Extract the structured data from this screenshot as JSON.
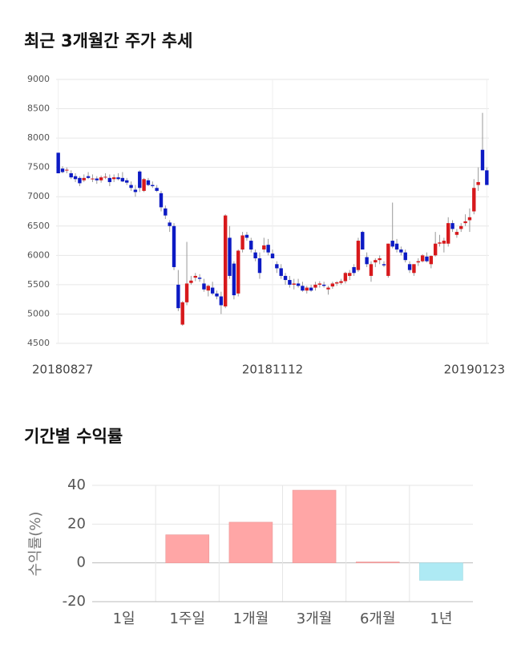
{
  "chart_data": [
    {
      "type": "candlestick",
      "title": "최근 3개월간 주가 추세",
      "categories": [
        "20180827",
        null,
        null,
        null,
        null,
        null,
        null,
        null,
        null,
        null,
        null,
        null,
        null,
        null,
        null,
        null,
        null,
        null,
        null,
        null,
        null,
        null,
        null,
        null,
        null,
        null,
        null,
        null,
        null,
        null,
        null,
        null,
        null,
        null,
        null,
        null,
        null,
        null,
        null,
        null,
        null,
        null,
        null,
        null,
        null,
        null,
        null,
        null,
        null,
        null,
        "20181112",
        null,
        null,
        null,
        null,
        null,
        null,
        null,
        null,
        null,
        null,
        null,
        null,
        null,
        null,
        null,
        null,
        null,
        null,
        null,
        null,
        null,
        null,
        null,
        null,
        null,
        null,
        null,
        null,
        null,
        null,
        null,
        null,
        null,
        null,
        null,
        null,
        null,
        null,
        null,
        null,
        null,
        null,
        null,
        null,
        null,
        null,
        null,
        null,
        null,
        "20190123"
      ],
      "open": [
        7750,
        7480,
        7450,
        7400,
        7350,
        7320,
        7280,
        7350,
        7300,
        7310,
        7280,
        7330,
        7320,
        7300,
        7330,
        7320,
        7280,
        7200,
        7120,
        7430,
        7100,
        7280,
        7200,
        7150,
        7060,
        6800,
        6560,
        6500,
        5500,
        4820,
        5200,
        5530,
        5620,
        5620,
        5520,
        5400,
        5450,
        5350,
        5300,
        5130,
        6300,
        5860,
        5350,
        6100,
        6350,
        6250,
        6050,
        5950,
        6100,
        6180,
        6030,
        5850,
        5780,
        5650,
        5580,
        5500,
        5520,
        5480,
        5400,
        5450,
        5450,
        5500,
        5500,
        5420,
        5470,
        5520,
        5530,
        5560,
        5650,
        5800,
        5750,
        6400,
        5970,
        5650,
        5880,
        5920,
        5850,
        5650,
        6250,
        6200,
        6100,
        6050,
        5850,
        5700,
        5880,
        5900,
        5980,
        5850,
        6000,
        6200,
        6200,
        6200,
        6550,
        6350,
        6450,
        6550,
        6600,
        6750,
        7200,
        7800,
        7450
      ],
      "high": [
        7750,
        7520,
        7500,
        7450,
        7400,
        7350,
        7380,
        7420,
        7380,
        7350,
        7360,
        7400,
        7380,
        7380,
        7400,
        7420,
        7320,
        7260,
        7200,
        7450,
        7320,
        7320,
        7260,
        7200,
        7100,
        6850,
        6600,
        6550,
        5750,
        5220,
        6230,
        5650,
        5700,
        5680,
        5600,
        5500,
        5550,
        5400,
        5380,
        6700,
        6500,
        5900,
        6100,
        6400,
        6400,
        6300,
        6100,
        6050,
        6300,
        6280,
        6100,
        5900,
        5850,
        5700,
        5650,
        5600,
        5600,
        5550,
        5480,
        5500,
        5550,
        5560,
        5550,
        5480,
        5550,
        5560,
        5600,
        5720,
        5750,
        5850,
        6300,
        6420,
        6050,
        5900,
        5950,
        6000,
        5900,
        6200,
        6900,
        6280,
        6150,
        6100,
        5900,
        5850,
        5950,
        6020,
        6050,
        6000,
        6400,
        6350,
        6300,
        6650,
        6600,
        6450,
        6550,
        6700,
        6800,
        7300,
        7500,
        8430,
        7500
      ],
      "low": [
        7400,
        7400,
        7400,
        7300,
        7250,
        7180,
        7250,
        7300,
        7250,
        7220,
        7240,
        7300,
        7180,
        7250,
        7280,
        7250,
        7200,
        7100,
        7000,
        7080,
        7080,
        7180,
        7150,
        7080,
        6750,
        6620,
        6400,
        5750,
        5050,
        4800,
        5150,
        5500,
        5560,
        5550,
        5380,
        5300,
        5320,
        5250,
        5000,
        5100,
        5600,
        5250,
        5300,
        6050,
        6250,
        6050,
        5900,
        5600,
        6050,
        6000,
        5950,
        5700,
        5600,
        5500,
        5450,
        5420,
        5450,
        5380,
        5350,
        5380,
        5400,
        5450,
        5450,
        5330,
        5430,
        5480,
        5500,
        5520,
        5580,
        5650,
        5720,
        6100,
        5800,
        5550,
        5800,
        5850,
        5800,
        5620,
        6120,
        6050,
        6000,
        5880,
        5700,
        5650,
        5820,
        5880,
        5880,
        5780,
        5980,
        6150,
        6050,
        6150,
        6400,
        6300,
        6400,
        6500,
        6400,
        6700,
        7100,
        7450,
        7200
      ],
      "close": [
        7400,
        7420,
        7460,
        7330,
        7300,
        7230,
        7320,
        7320,
        7310,
        7280,
        7330,
        7340,
        7250,
        7330,
        7300,
        7260,
        7240,
        7150,
        7080,
        7150,
        7300,
        7200,
        7180,
        7100,
        6820,
        6680,
        6500,
        5800,
        5100,
        5200,
        5520,
        5570,
        5650,
        5600,
        5420,
        5480,
        5350,
        5300,
        5150,
        6680,
        5650,
        5320,
        6080,
        6340,
        6300,
        6100,
        5950,
        5700,
        6170,
        6050,
        5950,
        5780,
        5650,
        5580,
        5500,
        5520,
        5480,
        5400,
        5450,
        5400,
        5500,
        5520,
        5480,
        5450,
        5520,
        5540,
        5560,
        5700,
        5700,
        5700,
        6250,
        6100,
        5850,
        5850,
        5920,
        5950,
        5830,
        6200,
        6150,
        6100,
        6050,
        5920,
        5750,
        5850,
        5900,
        6000,
        5900,
        5990,
        6200,
        6220,
        6250,
        6550,
        6450,
        6400,
        6500,
        6580,
        6650,
        7150,
        7250,
        7450,
        7200
      ],
      "up_color": "#d7191c",
      "down_color": "#0c1ac4",
      "ylim": [
        4500,
        9000
      ],
      "yticks": [
        4500,
        5000,
        5500,
        6000,
        6500,
        7000,
        7500,
        8000,
        8500,
        9000
      ],
      "grid": true
    },
    {
      "type": "bar",
      "title": "기간별 수익률",
      "ylabel": "수익률(%)",
      "categories": [
        "1일",
        "1주일",
        "1개월",
        "3개월",
        "6개월",
        "1년"
      ],
      "values": [
        0,
        14.5,
        21,
        37.5,
        0.5,
        -9
      ],
      "positive_color": "#ffa6a6",
      "negative_color": "#aeeaf4",
      "ylim": [
        -20,
        40
      ],
      "yticks": [
        -20,
        0,
        20,
        40
      ],
      "grid": true
    }
  ]
}
